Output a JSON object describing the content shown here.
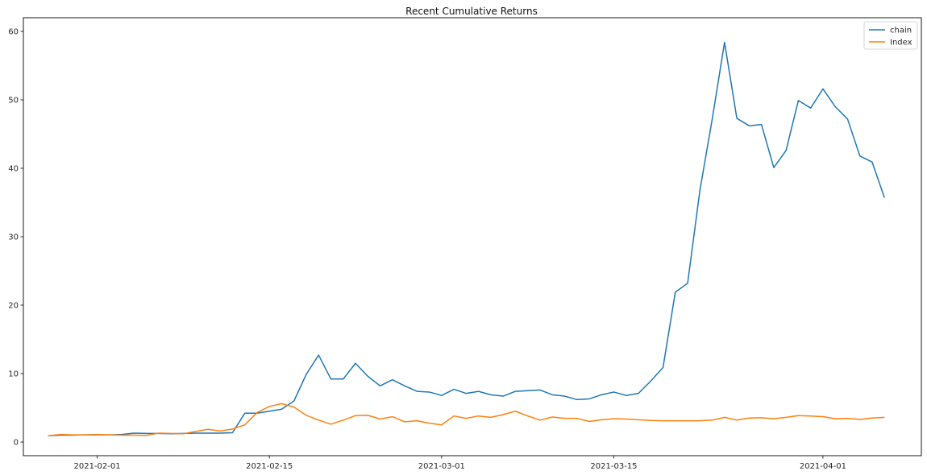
{
  "chart_data": {
    "type": "line",
    "title": "Recent Cumulative Returns",
    "xlabel": "",
    "ylabel": "",
    "x_start": "2021-01-28",
    "x_step_days": 1,
    "xlim": [
      "2021-01-26",
      "2021-04-09"
    ],
    "ylim": [
      -2,
      62
    ],
    "x_ticks": [
      "2021-02-01",
      "2021-02-15",
      "2021-03-01",
      "2021-03-15",
      "2021-04-01"
    ],
    "y_ticks": [
      0,
      10,
      20,
      30,
      40,
      50,
      60
    ],
    "grid": false,
    "legend_position": "top-right",
    "series": [
      {
        "name": "chain",
        "color": "#1f77b4",
        "values": [
          0.9,
          1.0,
          1.0,
          1.05,
          1.05,
          1.05,
          1.1,
          1.3,
          1.25,
          1.25,
          1.2,
          1.25,
          1.3,
          1.3,
          1.3,
          1.35,
          4.2,
          4.2,
          4.5,
          4.8,
          6.0,
          9.9,
          12.7,
          9.2,
          9.2,
          11.5,
          9.6,
          8.2,
          9.1,
          8.2,
          7.4,
          7.3,
          6.8,
          7.7,
          7.1,
          7.4,
          6.9,
          6.7,
          7.4,
          7.5,
          7.6,
          6.9,
          6.7,
          6.2,
          6.3,
          6.9,
          7.3,
          6.8,
          7.1,
          8.9,
          10.9,
          21.9,
          23.2,
          36.8,
          47.2,
          58.4,
          47.3,
          46.2,
          46.4,
          40.1,
          42.6,
          49.9,
          48.8,
          51.6,
          49.0,
          47.2,
          41.8,
          40.9,
          35.7
        ]
      },
      {
        "name": "Index",
        "color": "#ff7f0e",
        "values": [
          0.9,
          1.1,
          1.05,
          1.05,
          1.1,
          1.05,
          1.0,
          1.0,
          0.95,
          1.3,
          1.25,
          1.2,
          1.55,
          1.85,
          1.6,
          1.9,
          2.5,
          4.3,
          5.2,
          5.6,
          5.1,
          3.9,
          3.2,
          2.6,
          3.2,
          3.85,
          3.9,
          3.35,
          3.7,
          2.95,
          3.1,
          2.75,
          2.5,
          3.8,
          3.45,
          3.8,
          3.6,
          4.0,
          4.5,
          3.8,
          3.2,
          3.65,
          3.45,
          3.45,
          3.0,
          3.25,
          3.4,
          3.35,
          3.25,
          3.15,
          3.1,
          3.1,
          3.1,
          3.1,
          3.2,
          3.6,
          3.2,
          3.5,
          3.55,
          3.4,
          3.6,
          3.85,
          3.8,
          3.7,
          3.4,
          3.45,
          3.3,
          3.5,
          3.6
        ]
      }
    ]
  }
}
